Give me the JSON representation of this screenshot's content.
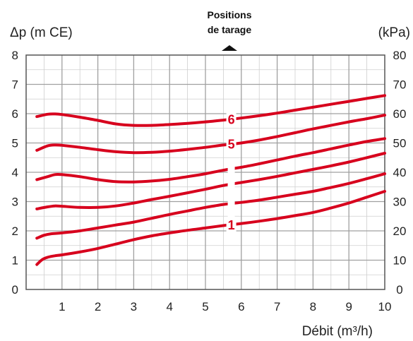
{
  "chart_data": {
    "type": "line",
    "title": "",
    "xlabel": "Débit (m³/h)",
    "ylabel_left": "Δp (m CE)",
    "ylabel_right": "(kPa)",
    "xlim": [
      0,
      10
    ],
    "ylim": [
      0,
      8
    ],
    "ylim_right": [
      0,
      80
    ],
    "x_ticks": [
      1,
      2,
      3,
      4,
      5,
      6,
      7,
      8,
      9,
      10
    ],
    "y_ticks_left": [
      0,
      1,
      2,
      3,
      4,
      5,
      6,
      7,
      8
    ],
    "y_ticks_right": [
      0,
      10,
      20,
      30,
      40,
      50,
      60,
      70,
      80
    ],
    "grid": true,
    "annotation": "Positions\nde tarage",
    "series_color": "#d7001d",
    "series": [
      {
        "name": "1",
        "x": [
          0.3,
          0.45,
          0.6,
          0.8,
          1.0,
          1.5,
          2.0,
          2.5,
          3.0,
          3.5,
          4.0,
          4.5,
          5.0,
          5.5,
          6.0,
          6.5,
          7.0,
          7.5,
          8.0,
          8.5,
          9.0,
          9.5,
          10.0
        ],
        "y": [
          0.85,
          1.02,
          1.1,
          1.15,
          1.18,
          1.28,
          1.4,
          1.55,
          1.7,
          1.83,
          1.93,
          2.02,
          2.1,
          2.18,
          2.25,
          2.33,
          2.42,
          2.52,
          2.63,
          2.78,
          2.95,
          3.15,
          3.35
        ]
      },
      {
        "name": "",
        "x": [
          0.3,
          0.5,
          0.7,
          1.0,
          1.5,
          2.0,
          2.5,
          3.0,
          3.5,
          4.0,
          4.5,
          5.0,
          5.5,
          6.0,
          6.5,
          7.0,
          7.5,
          8.0,
          8.5,
          9.0,
          9.5,
          10.0
        ],
        "y": [
          1.75,
          1.85,
          1.9,
          1.93,
          2.0,
          2.1,
          2.2,
          2.3,
          2.43,
          2.56,
          2.68,
          2.8,
          2.9,
          2.97,
          3.05,
          3.15,
          3.25,
          3.35,
          3.48,
          3.62,
          3.78,
          3.95
        ]
      },
      {
        "name": "",
        "x": [
          0.3,
          0.6,
          0.8,
          1.0,
          1.5,
          2.0,
          2.5,
          3.0,
          3.5,
          4.0,
          4.5,
          5.0,
          5.5,
          6.0,
          6.5,
          7.0,
          7.5,
          8.0,
          8.5,
          9.0,
          9.5,
          10.0
        ],
        "y": [
          2.75,
          2.82,
          2.85,
          2.84,
          2.8,
          2.8,
          2.85,
          2.95,
          3.07,
          3.18,
          3.3,
          3.42,
          3.55,
          3.65,
          3.75,
          3.86,
          3.98,
          4.1,
          4.22,
          4.35,
          4.5,
          4.65
        ]
      },
      {
        "name": "",
        "x": [
          0.3,
          0.6,
          0.8,
          1.0,
          1.5,
          2.0,
          2.5,
          3.0,
          3.5,
          4.0,
          4.5,
          5.0,
          5.5,
          6.0,
          6.5,
          7.0,
          7.5,
          8.0,
          8.5,
          9.0,
          9.5,
          10.0
        ],
        "y": [
          3.75,
          3.85,
          3.92,
          3.92,
          3.85,
          3.75,
          3.68,
          3.67,
          3.7,
          3.76,
          3.85,
          3.95,
          4.07,
          4.17,
          4.29,
          4.42,
          4.55,
          4.67,
          4.8,
          4.93,
          5.05,
          5.15
        ]
      },
      {
        "name": "5",
        "x": [
          0.3,
          0.6,
          0.8,
          1.0,
          1.5,
          2.0,
          2.5,
          3.0,
          3.5,
          4.0,
          4.5,
          5.0,
          5.5,
          6.0,
          6.5,
          7.0,
          7.5,
          8.0,
          8.5,
          9.0,
          9.5,
          10.0
        ],
        "y": [
          4.75,
          4.9,
          4.93,
          4.92,
          4.85,
          4.77,
          4.7,
          4.67,
          4.68,
          4.72,
          4.78,
          4.85,
          4.93,
          5.0,
          5.1,
          5.22,
          5.35,
          5.48,
          5.6,
          5.72,
          5.83,
          5.95
        ]
      },
      {
        "name": "6",
        "x": [
          0.3,
          0.6,
          0.8,
          1.0,
          1.5,
          2.0,
          2.5,
          3.0,
          3.5,
          4.0,
          4.5,
          5.0,
          5.5,
          6.0,
          6.5,
          7.0,
          7.5,
          8.0,
          8.5,
          9.0,
          9.5,
          10.0
        ],
        "y": [
          5.9,
          5.98,
          5.99,
          5.97,
          5.88,
          5.77,
          5.65,
          5.6,
          5.6,
          5.63,
          5.67,
          5.72,
          5.78,
          5.85,
          5.93,
          6.02,
          6.12,
          6.22,
          6.32,
          6.42,
          6.52,
          6.62
        ]
      }
    ]
  }
}
